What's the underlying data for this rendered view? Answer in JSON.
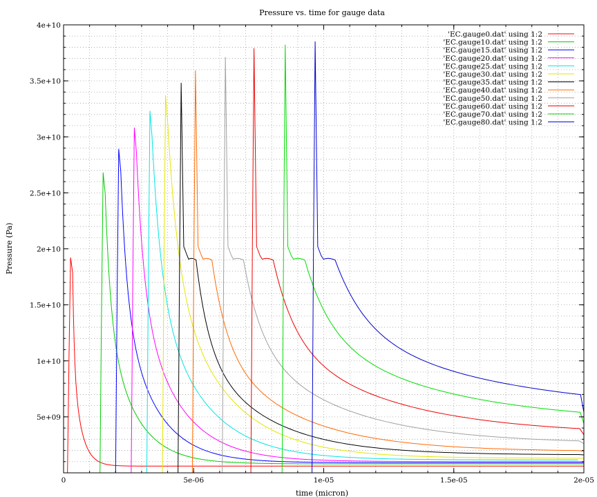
{
  "chart_data": {
    "type": "line",
    "title": "Pressure vs. time for gauge data",
    "xlabel": "time (micron)",
    "ylabel": "Pressure (Pa)",
    "xlim": [
      0,
      2e-05
    ],
    "ylim": [
      0,
      40000000000.0
    ],
    "x_ticks": [
      0,
      5e-06,
      1e-05,
      1.5e-05,
      2e-05
    ],
    "x_tick_labels": [
      "0",
      "5e-06",
      "1e-05",
      "1.5e-05",
      "2e-05"
    ],
    "y_ticks": [
      5000000000.0,
      10000000000.0,
      15000000000.0,
      20000000000.0,
      25000000000.0,
      30000000000.0,
      35000000000.0,
      40000000000.0
    ],
    "y_tick_labels": [
      "5e+09",
      "1e+10",
      "1.5e+10",
      "2e+10",
      "2.5e+10",
      "3e+10",
      "3.5e+10",
      "4e+10"
    ],
    "grid": true,
    "legend_position": "top-right",
    "series": [
      {
        "name": "'EC.gauge0.dat' using 1:2",
        "color": "#ff0000",
        "arrival": 1.5e-07,
        "peak": 19200000000.0,
        "tail": 600000000.0
      },
      {
        "name": "'EC.gauge10.dat' using 1:2",
        "color": "#00cc00",
        "arrival": 1.4e-06,
        "peak": 26800000000.0,
        "tail": 800000000.0
      },
      {
        "name": "'EC.gauge15.dat' using 1:2",
        "color": "#0000ff",
        "arrival": 2e-06,
        "peak": 28900000000.0,
        "tail": 900000000.0
      },
      {
        "name": "'EC.gauge20.dat' using 1:2",
        "color": "#ff00ff",
        "arrival": 2.6e-06,
        "peak": 30800000000.0,
        "tail": 1000000000.0
      },
      {
        "name": "'EC.gauge25.dat' using 1:2",
        "color": "#00e5e5",
        "arrival": 3.2e-06,
        "peak": 32300000000.0,
        "tail": 1150000000.0
      },
      {
        "name": "'EC.gauge30.dat' using 1:2",
        "color": "#e5e500",
        "arrival": 3.8e-06,
        "peak": 33700000000.0,
        "tail": 1300000000.0
      },
      {
        "name": "'EC.gauge35.dat' using 1:2",
        "color": "#000000",
        "arrival": 4.4e-06,
        "peak": 34800000000.0,
        "tail": 1600000000.0
      },
      {
        "name": "'EC.gauge40.dat' using 1:2",
        "color": "#ff6a00",
        "arrival": 4.95e-06,
        "peak": 35900000000.0,
        "tail": 1900000000.0
      },
      {
        "name": "'EC.gauge50.dat' using 1:2",
        "color": "#a0a0a0",
        "arrival": 6.1e-06,
        "peak": 37100000000.0,
        "tail": 2600000000.0
      },
      {
        "name": "'EC.gauge60.dat' using 1:2",
        "color": "#ee0000",
        "arrival": 7.2e-06,
        "peak": 37900000000.0,
        "tail": 3400000000.0
      },
      {
        "name": "'EC.gauge70.dat' using 1:2",
        "color": "#00dd00",
        "arrival": 8.4e-06,
        "peak": 38200000000.0,
        "tail": 4400000000.0
      },
      {
        "name": "'EC.gauge80.dat' using 1:2",
        "color": "#0000cc",
        "arrival": 9.55e-06,
        "peak": 38500000000.0,
        "tail": 5400000000.0
      }
    ]
  }
}
